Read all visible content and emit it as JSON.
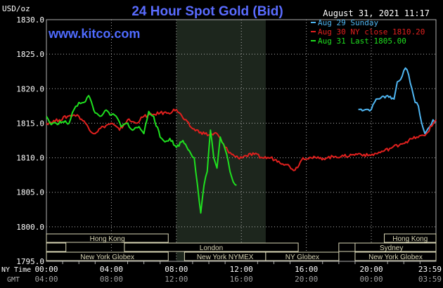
{
  "chart_data": {
    "type": "line",
    "title": "24 Hour Spot Gold (Bid)",
    "watermark": "www.kitco.com",
    "timestamp": "August 31, 2021 11:17",
    "ylabel": "USD/oz",
    "ylim": [
      1795,
      1830
    ],
    "y_ticks": [
      "1830.0",
      "1825.0",
      "1820.0",
      "1815.0",
      "1810.0",
      "1805.0",
      "1800.0",
      "1795.0"
    ],
    "x_axis": {
      "ny_label": "NY Time",
      "gmt_label": "GMT",
      "ny_ticks": [
        "00:00",
        "04:00",
        "08:00",
        "12:00",
        "16:00",
        "20:00",
        "23:59"
      ],
      "gmt_ticks": [
        "04:00",
        "08:00",
        "12:00",
        "16:00",
        "20:00",
        "00:00",
        "03:59"
      ]
    },
    "grid": true,
    "legend_position": "top-right",
    "colors": {
      "background": "#000000",
      "grid": "#b0b0b0",
      "title": "#5a6cff",
      "watermark": "#4f6bff",
      "highlight": "#1d261d",
      "session_bar": "#d9d6b6"
    },
    "series": [
      {
        "name": "Aug 29 Sunday",
        "color": "#4fb6f2",
        "x": [
          19.2,
          19.7,
          20.0,
          20.3,
          20.6,
          21.0,
          21.4,
          21.6,
          21.9,
          22.1,
          22.3,
          22.5,
          22.7,
          22.9,
          23.1,
          23.3,
          23.6,
          23.8,
          23.98
        ],
        "y": [
          1817.0,
          1817.0,
          1817.0,
          1818.5,
          1818.7,
          1819.0,
          1818.5,
          1821.0,
          1821.8,
          1823.0,
          1822.0,
          1820.0,
          1818.0,
          1817.5,
          1815.0,
          1813.5,
          1814.5,
          1815.5,
          1815.2
        ]
      },
      {
        "name": "Aug 30 NY close 1810.20",
        "color": "#e0201e",
        "x": [
          0.0,
          0.8,
          1.3,
          1.7,
          2.0,
          2.4,
          2.9,
          3.5,
          4.0,
          4.5,
          5.0,
          5.5,
          6.0,
          6.5,
          7.0,
          7.5,
          8.0,
          8.5,
          9.0,
          9.5,
          10.0,
          10.5,
          11.0,
          11.4,
          11.8,
          12.3,
          12.8,
          13.3,
          13.8,
          14.3,
          14.8,
          15.3,
          15.8,
          16.3,
          16.8,
          17.3,
          17.8,
          18.3,
          18.8,
          19.3,
          19.8,
          20.3,
          20.8,
          21.3,
          21.8,
          22.3,
          22.8,
          23.3,
          23.98
        ],
        "y": [
          1815.0,
          1815.5,
          1816.0,
          1816.2,
          1816.0,
          1815.0,
          1813.5,
          1814.5,
          1815.0,
          1814.0,
          1815.5,
          1815.0,
          1816.0,
          1816.2,
          1816.5,
          1816.5,
          1817.0,
          1815.5,
          1814.2,
          1813.7,
          1813.3,
          1813.5,
          1811.5,
          1810.5,
          1810.0,
          1810.3,
          1810.5,
          1810.0,
          1810.0,
          1809.5,
          1809.0,
          1808.2,
          1810.0,
          1810.0,
          1809.9,
          1810.0,
          1810.2,
          1810.2,
          1810.4,
          1810.6,
          1810.3,
          1810.6,
          1811.0,
          1811.5,
          1812.0,
          1812.5,
          1813.0,
          1813.2,
          1815.5
        ]
      },
      {
        "name": "Aug 31 Last 1805.00",
        "color": "#1fe01f",
        "x": [
          0.0,
          0.3,
          0.6,
          1.0,
          1.4,
          1.7,
          2.0,
          2.3,
          2.6,
          3.0,
          3.3,
          3.6,
          4.0,
          4.3,
          4.6,
          5.0,
          5.3,
          5.7,
          6.0,
          6.3,
          6.6,
          7.0,
          7.3,
          7.6,
          8.0,
          8.4,
          8.8,
          9.1,
          9.3,
          9.5,
          9.7,
          9.9,
          10.1,
          10.3,
          10.5,
          10.7,
          10.9,
          11.1,
          11.3,
          11.5,
          11.7
        ],
        "y": [
          1816.0,
          1814.8,
          1815.0,
          1815.2,
          1815.0,
          1817.0,
          1818.0,
          1818.0,
          1819.0,
          1816.5,
          1816.0,
          1816.8,
          1816.2,
          1816.0,
          1814.5,
          1815.0,
          1814.0,
          1814.5,
          1813.5,
          1816.7,
          1816.0,
          1813.0,
          1812.3,
          1812.8,
          1811.5,
          1812.5,
          1811.0,
          1810.0,
          1806.0,
          1802.0,
          1806.0,
          1808.0,
          1814.0,
          1810.0,
          1808.5,
          1813.0,
          1812.0,
          1810.5,
          1808.0,
          1806.5,
          1806.0
        ]
      }
    ],
    "market_sessions": [
      {
        "name": "Hong Kong",
        "start": 0.0,
        "end": 7.5,
        "row": 1
      },
      {
        "name": "Hong Kong",
        "start": 20.8,
        "end": 23.98,
        "row": 1
      },
      {
        "name": "London",
        "start": 4.8,
        "end": 15.5,
        "row": 2
      },
      {
        "name": "Sydney",
        "start": 18.5,
        "end": 23.98,
        "row": 2
      },
      {
        "name": "New York Globex",
        "start": 0.0,
        "end": 7.5,
        "row": 3
      },
      {
        "name": "New York NYMEX",
        "start": 8.5,
        "end": 13.5,
        "row": 3
      },
      {
        "name": "NY Globex",
        "start": 13.5,
        "end": 18.0,
        "row": 3
      },
      {
        "name": "New York Globex",
        "start": 19.0,
        "end": 23.98,
        "row": 3
      }
    ],
    "highlight_range": [
      8.0,
      13.5
    ]
  }
}
